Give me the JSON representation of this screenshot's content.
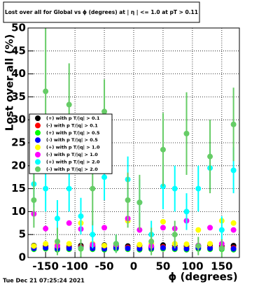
{
  "chart_data": {
    "type": "scatter",
    "title": "Lost over all for Global vs ϕ (degrees) at | η | <= 1.0 at pT > 0.11",
    "x_label": "ϕ (degrees)",
    "y_label": "Lost over all (%)",
    "timestamp": "Tue Dec 21 07:25:24 2021",
    "x": [
      -170,
      -150,
      -130,
      -110,
      -90,
      -70,
      -50,
      -30,
      -10,
      10,
      30,
      50,
      70,
      90,
      110,
      130,
      150,
      170
    ],
    "xlim": [
      -180,
      180
    ],
    "ylim": [
      0,
      50
    ],
    "xticks": [
      -150,
      -100,
      -50,
      0,
      50,
      100,
      150
    ],
    "yticks": [
      0,
      5,
      10,
      15,
      20,
      25,
      30,
      35,
      40,
      45,
      50
    ],
    "grid": true,
    "legend": "left",
    "series": [
      {
        "name": "(+) with p T/|q| > 0.1",
        "color": "#000000",
        "values": [
          2.6,
          2.5,
          2.7,
          2.4,
          2.6,
          2.5,
          2.7,
          2.6,
          2.5,
          2.6,
          2.4,
          2.7,
          2.6,
          2.5,
          2.6,
          2.7,
          2.5,
          2.6
        ]
      },
      {
        "name": "(-) with p T/|q| > 0.1",
        "color": "#ff0000",
        "values": [
          2.2,
          2.3,
          2.1,
          2.2,
          2.3,
          2.2,
          2.1,
          2.3,
          2.2,
          2.1,
          2.2,
          2.3,
          2.2,
          2.1,
          2.3,
          2.2,
          2.2,
          2.1
        ]
      },
      {
        "name": "(+) with p T/|q| > 0.5",
        "color": "#00ff00",
        "values": [
          1.8,
          1.9,
          1.7,
          1.8,
          1.9,
          1.8,
          1.7,
          1.9,
          1.8,
          1.7,
          1.8,
          1.9,
          1.8,
          1.7,
          1.9,
          1.8,
          1.8,
          1.7
        ]
      },
      {
        "name": "(-) with p T/|q| > 0.5",
        "color": "#0000ff",
        "values": [
          2.0,
          2.1,
          1.9,
          2.0,
          2.1,
          2.0,
          1.9,
          2.1,
          2.0,
          1.9,
          2.0,
          2.1,
          2.0,
          1.9,
          2.1,
          2.0,
          2.0,
          1.9
        ]
      },
      {
        "name": "(+) with p T/|q| > 1.0",
        "color": "#ffff00",
        "values": [
          2.5,
          3,
          2.8,
          3,
          7.5,
          3,
          2.6,
          3,
          8,
          2.8,
          3,
          7.8,
          3,
          2.9,
          6,
          3,
          8,
          7.5
        ]
      },
      {
        "name": "(-) with p T/|q| > 1.0",
        "color": "#ff00ff",
        "values": [
          9.5,
          6.3,
          2.5,
          7.5,
          6.2,
          2.8,
          6.5,
          2.8,
          8.5,
          6,
          2.5,
          6.5,
          6.3,
          8,
          2.6,
          6.5,
          3,
          6
        ]
      },
      {
        "name": "(+) with p T/|q| > 2.0",
        "color": "#00ffff",
        "values": [
          16,
          15,
          8.5,
          15,
          9,
          5,
          17.5,
          3,
          17,
          12,
          5,
          15.5,
          15,
          10,
          15,
          19.5,
          6,
          19
        ],
        "errors": [
          5,
          5,
          4,
          5,
          4,
          3,
          5,
          2,
          5,
          5,
          3,
          5,
          5,
          4,
          5,
          5,
          3,
          5
        ]
      },
      {
        "name": "(-) with p T/|q| > 2.0",
        "color": "#66cc66",
        "values": [
          12.5,
          36.2,
          3.5,
          33.3,
          2,
          15,
          31.8,
          3,
          12.5,
          12,
          3.5,
          23.5,
          5,
          27,
          2.5,
          22,
          2,
          29
        ],
        "errors": [
          6,
          14,
          3,
          9,
          2,
          8,
          7,
          2,
          6,
          6,
          3,
          8,
          3,
          9,
          2,
          8,
          2,
          8
        ]
      }
    ]
  }
}
